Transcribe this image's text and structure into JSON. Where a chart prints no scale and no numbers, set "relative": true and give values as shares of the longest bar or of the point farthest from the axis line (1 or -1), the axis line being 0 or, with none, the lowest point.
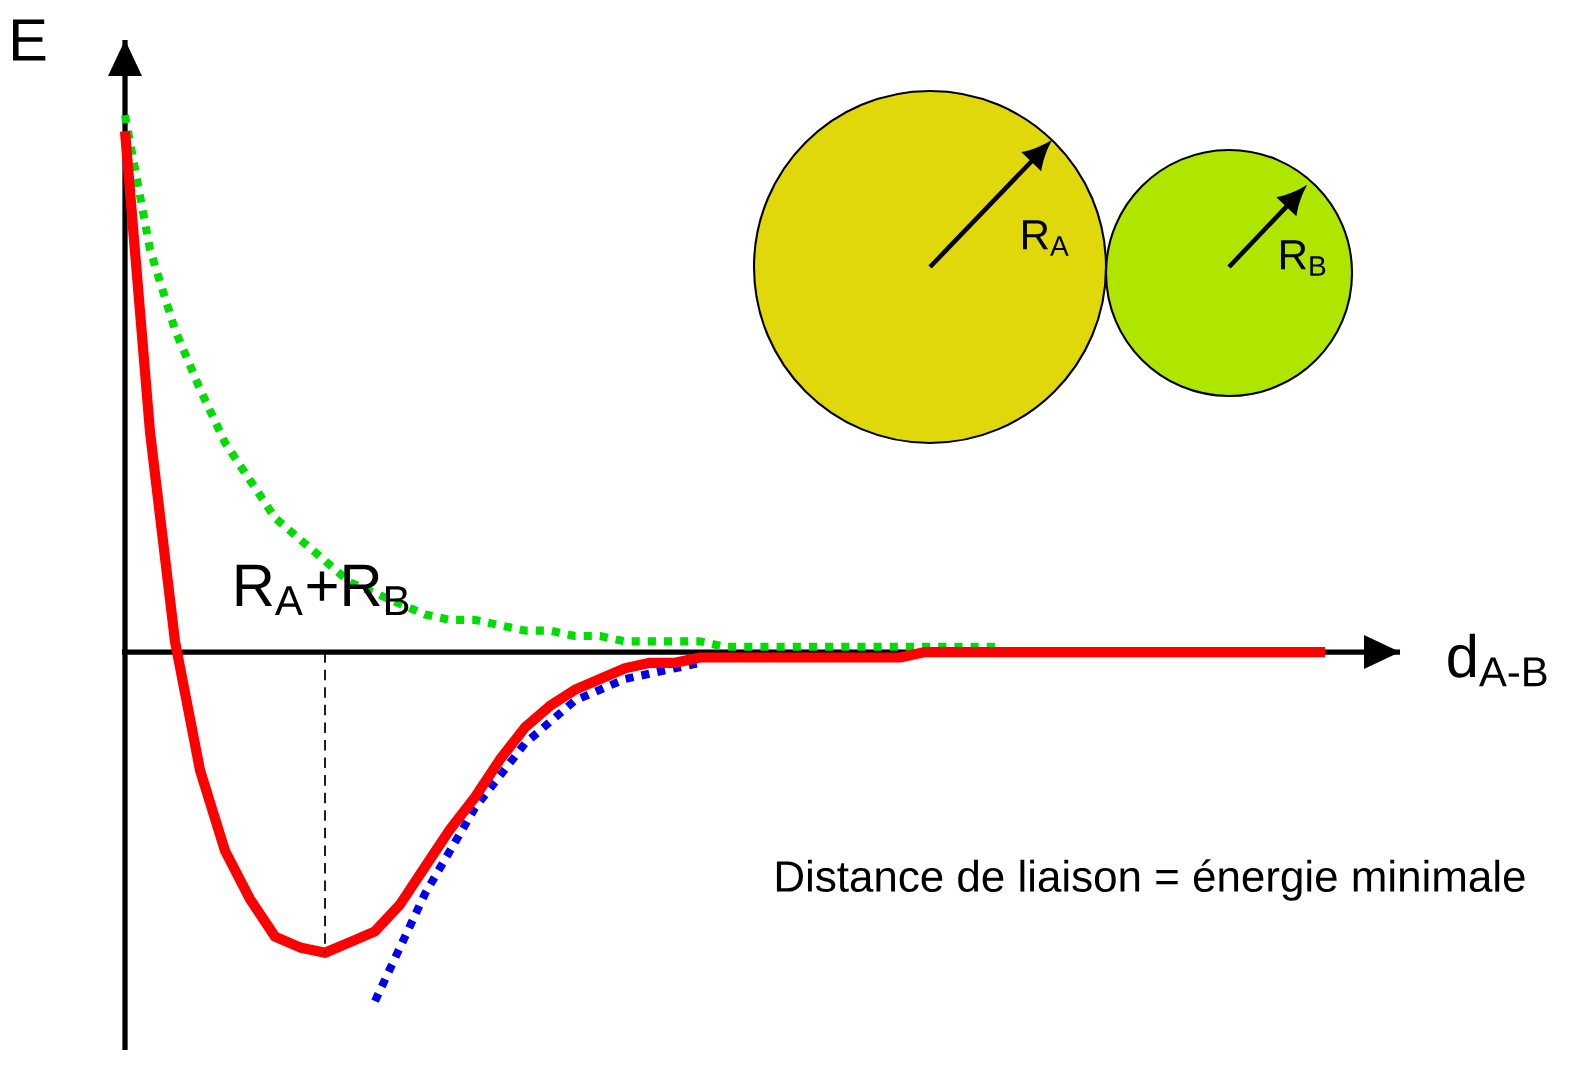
{
  "chart_data": {
    "type": "line",
    "relative": true,
    "xlabel": "d$_{A-B}$",
    "ylabel": "E",
    "categories": [
      null,
      null,
      null,
      null,
      null,
      null,
      null,
      null,
      null,
      null,
      null,
      null,
      null,
      null,
      null,
      null,
      null,
      null,
      null,
      null,
      null,
      null,
      null,
      null,
      null,
      null,
      null,
      null,
      null,
      null,
      null,
      null,
      null,
      null,
      null,
      null,
      null,
      null,
      null,
      null,
      null,
      null,
      null,
      null,
      null,
      null,
      null,
      null,
      null
    ],
    "series": [
      {
        "color": "#00dd00",
        "line_style": "dotted",
        "values": [
          1.0,
          0.75,
          0.6,
          0.49,
          0.39,
          0.32,
          0.25,
          0.21,
          0.17,
          0.13,
          0.11,
          0.09,
          0.07,
          0.06,
          0.06,
          0.05,
          0.04,
          0.04,
          0.03,
          0.03,
          0.02,
          0.02,
          0.02,
          0.02,
          0.01,
          0.01,
          0.01,
          0.01,
          0.01,
          0.01,
          0.01,
          0.01,
          0.01,
          0.01,
          0.01,
          0.01,
          null,
          null,
          null,
          null,
          null,
          null,
          null,
          null,
          null,
          null,
          null,
          null,
          null
        ]
      },
      {
        "color": "#0000ee",
        "line_style": "dotted",
        "values": [
          null,
          null,
          null,
          null,
          null,
          null,
          null,
          null,
          null,
          null,
          -0.65,
          -0.55,
          -0.45,
          -0.37,
          -0.29,
          -0.23,
          -0.17,
          -0.13,
          -0.09,
          -0.07,
          -0.05,
          -0.04,
          -0.03,
          -0.02,
          null,
          null,
          null,
          null,
          null,
          null,
          null,
          null,
          null,
          null,
          null,
          null,
          null,
          null,
          null,
          null,
          null,
          null,
          null,
          null,
          null,
          null,
          null,
          null,
          null
        ]
      },
      {
        "color": "#ff0000",
        "line_style": "solid",
        "values": [
          0.97,
          0.41,
          0.02,
          -0.22,
          -0.37,
          -0.46,
          -0.53,
          -0.55,
          -0.56,
          -0.54,
          -0.52,
          -0.47,
          -0.4,
          -0.33,
          -0.27,
          -0.2,
          -0.14,
          -0.1,
          -0.07,
          -0.05,
          -0.03,
          -0.02,
          -0.02,
          -0.01,
          -0.01,
          -0.01,
          -0.01,
          -0.01,
          -0.01,
          -0.01,
          -0.01,
          -0.01,
          0,
          0,
          0,
          0,
          0,
          0,
          0,
          0,
          0,
          0,
          0,
          0,
          0,
          0,
          0,
          0,
          0
        ]
      }
    ],
    "annotations": [
      "R$_{A}$+R$_{B}$",
      "Distance de liaison = énergie minimale",
      "R$_{A}$",
      "R$_{B}$"
    ]
  }
}
